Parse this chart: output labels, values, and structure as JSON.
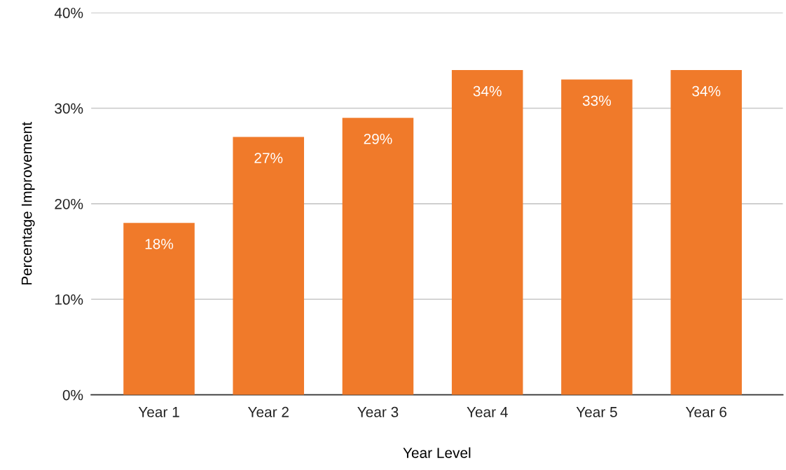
{
  "chart_data": {
    "type": "bar",
    "xlabel": "Year Level",
    "ylabel": "Percentage Improvement",
    "categories": [
      "Year 1",
      "Year 2",
      "Year 3",
      "Year 4",
      "Year 5",
      "Year 6"
    ],
    "values": [
      18,
      27,
      29,
      34,
      33,
      34
    ],
    "value_labels": [
      "18%",
      "27%",
      "29%",
      "34%",
      "33%",
      "34%"
    ],
    "color": "#f07a2a",
    "ylim": [
      0,
      40
    ],
    "yticks": [
      {
        "value": 0,
        "label": "0%"
      },
      {
        "value": 10,
        "label": "10%"
      },
      {
        "value": 20,
        "label": "20%"
      },
      {
        "value": 30,
        "label": "30%"
      },
      {
        "value": 40,
        "label": "40%"
      }
    ],
    "grid": "y"
  }
}
